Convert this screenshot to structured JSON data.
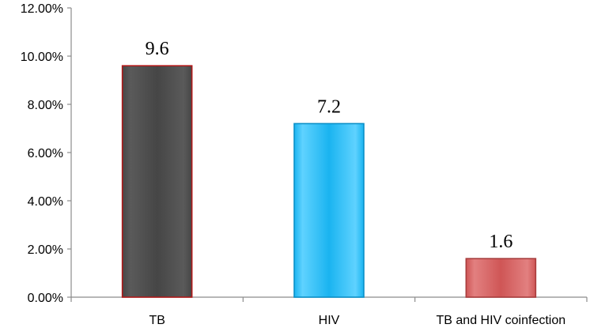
{
  "chart_data": {
    "type": "bar",
    "categories": [
      "TB",
      "HIV",
      "TB and HIV coinfection"
    ],
    "values": [
      9.6,
      7.2,
      1.6
    ],
    "data_labels": [
      "9.6",
      "7.2",
      "1.6"
    ],
    "ylim": [
      0,
      12
    ],
    "yticks": [
      0,
      2,
      4,
      6,
      8,
      10,
      12
    ],
    "ytick_labels": [
      "0.00%",
      "2.00%",
      "4.00%",
      "6.00%",
      "8.00%",
      "10.00%",
      "12.00%"
    ],
    "title": "",
    "xlabel": "",
    "ylabel": "",
    "grid": false,
    "legend": "none",
    "bar_colors": [
      {
        "face": "#464646",
        "light": "#5a5a5a",
        "border": "#b01818"
      },
      {
        "face": "#1ab4f0",
        "light": "#5fd2ff",
        "border": "#0b90c8"
      },
      {
        "face": "#cf5656",
        "light": "#e28080",
        "border": "#a83c3c"
      }
    ],
    "axis_color": "#8c8c8c"
  }
}
